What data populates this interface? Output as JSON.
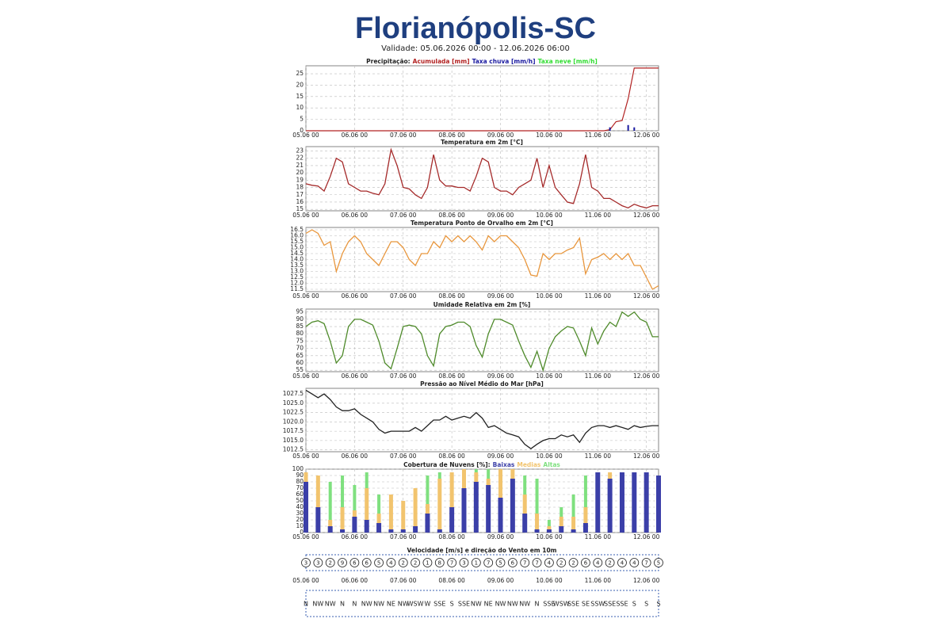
{
  "header": {
    "title": "Florianópolis-SC",
    "subtitle": "Validade: 05.06.2026 00:00 - 12.06.2026 06:00"
  },
  "chart_data": [
    {
      "type": "combo",
      "title": "Precipitação:",
      "xlim": [
        0,
        174
      ],
      "ylim": [
        0,
        28.5
      ],
      "yticks": [
        0,
        5,
        10,
        15,
        20,
        25
      ],
      "xticks": [
        {
          "value": 0,
          "label": "05.06 00"
        },
        {
          "value": 24,
          "label": "06.06 00"
        },
        {
          "value": 48,
          "label": "07.06 00"
        },
        {
          "value": 72,
          "label": "08.06 00"
        },
        {
          "value": 96,
          "label": "09.06 00"
        },
        {
          "value": 120,
          "label": "10.06 00"
        },
        {
          "value": 144,
          "label": "11.06 00"
        },
        {
          "value": 168,
          "label": "12.06 00"
        }
      ],
      "x": [
        0,
        147,
        150,
        153,
        156,
        159,
        162,
        165,
        168,
        171,
        174
      ],
      "series": [
        {
          "name": "Acumulada [mm]",
          "color": "#b22222",
          "kind": "line",
          "values": [
            0,
            0,
            0.5,
            4,
            4.5,
            14,
            27.5,
            27.5,
            27.5,
            27.5,
            27.5
          ]
        },
        {
          "name": "Taxa chuva [mm/h]",
          "color": "#1a1aa0",
          "kind": "bar",
          "values": [
            0,
            0,
            1.5,
            0,
            0,
            2.5,
            1.5,
            0,
            0,
            0,
            0
          ]
        },
        {
          "name": "Taxa neve [mm/h]",
          "color": "#33dd33",
          "kind": "bar",
          "values": [
            0,
            0,
            0,
            0,
            0,
            0,
            0,
            0,
            0,
            0,
            0
          ]
        }
      ]
    },
    {
      "type": "line",
      "title": "Temperatura em 2m [°C]",
      "color": "#a52a2a",
      "xlim": [
        0,
        174
      ],
      "ylim": [
        14.8,
        23.6
      ],
      "yticks": [
        15,
        16,
        17,
        18,
        19,
        20,
        21,
        22,
        23
      ],
      "xticks": [
        {
          "value": 0,
          "label": "05.06 00"
        },
        {
          "value": 24,
          "label": "06.06 00"
        },
        {
          "value": 48,
          "label": "07.06 00"
        },
        {
          "value": 72,
          "label": "08.06 00"
        },
        {
          "value": 96,
          "label": "09.06 00"
        },
        {
          "value": 120,
          "label": "10.06 00"
        },
        {
          "value": 144,
          "label": "11.06 00"
        },
        {
          "value": 168,
          "label": "12.06 00"
        }
      ],
      "x": [
        0,
        3,
        6,
        9,
        12,
        15,
        18,
        21,
        24,
        27,
        30,
        33,
        36,
        39,
        42,
        45,
        48,
        51,
        54,
        57,
        60,
        63,
        66,
        69,
        72,
        75,
        78,
        81,
        84,
        87,
        90,
        93,
        96,
        99,
        102,
        105,
        108,
        111,
        114,
        117,
        120,
        123,
        126,
        129,
        132,
        135,
        138,
        141,
        144,
        147,
        150,
        153,
        156,
        159,
        162,
        165,
        168,
        171,
        174
      ],
      "values": [
        18.5,
        18.3,
        18.2,
        17.5,
        19.5,
        22,
        21.5,
        18.5,
        18,
        17.5,
        17.5,
        17.2,
        17,
        18.5,
        23.2,
        21,
        18,
        17.8,
        17,
        16.5,
        18,
        22.5,
        19,
        18.2,
        18.2,
        18,
        18,
        17.5,
        19.5,
        22,
        21.5,
        18,
        17.5,
        17.5,
        17,
        18,
        18.5,
        19,
        22,
        18,
        21,
        18,
        17,
        16,
        15.8,
        18.5,
        22.5,
        18,
        17.5,
        16.5,
        16.5,
        16,
        15.5,
        15.2,
        15.7,
        15.4,
        15.2,
        15.5,
        15.5
      ]
    },
    {
      "type": "line",
      "title": "Temperatura Ponto de Orvalho em 2m [°C]",
      "color": "#e8963c",
      "xlim": [
        0,
        174
      ],
      "ylim": [
        11.3,
        16.7
      ],
      "yticks": [
        11.5,
        {
          "value": 12,
          "label": "12.0"
        },
        12.5,
        {
          "value": 13,
          "label": "13.0"
        },
        13.5,
        {
          "value": 14,
          "label": "14.0"
        },
        14.5,
        {
          "value": 15,
          "label": "15.0"
        },
        15.5,
        {
          "value": 16,
          "label": "16.0"
        },
        16.5
      ],
      "xticks": [
        {
          "value": 0,
          "label": "05.06 00"
        },
        {
          "value": 24,
          "label": "06.06 00"
        },
        {
          "value": 48,
          "label": "07.06 00"
        },
        {
          "value": 72,
          "label": "08.06 00"
        },
        {
          "value": 96,
          "label": "09.06 00"
        },
        {
          "value": 120,
          "label": "10.06 00"
        },
        {
          "value": 144,
          "label": "11.06 00"
        },
        {
          "value": 168,
          "label": "12.06 00"
        }
      ],
      "x": [
        0,
        3,
        6,
        9,
        12,
        15,
        18,
        21,
        24,
        27,
        30,
        33,
        36,
        39,
        42,
        45,
        48,
        51,
        54,
        57,
        60,
        63,
        66,
        69,
        72,
        75,
        78,
        81,
        84,
        87,
        90,
        93,
        96,
        99,
        102,
        105,
        108,
        111,
        114,
        117,
        120,
        123,
        126,
        129,
        132,
        135,
        138,
        141,
        144,
        147,
        150,
        153,
        156,
        159,
        162,
        165,
        168,
        171,
        174
      ],
      "values": [
        16.2,
        16.5,
        16.2,
        15.2,
        15.5,
        13,
        14.5,
        15.5,
        16,
        15.5,
        14.5,
        14,
        13.5,
        14.5,
        15.5,
        15.5,
        15,
        14,
        13.5,
        14.5,
        14.5,
        15.5,
        15,
        16,
        15.5,
        16,
        15.5,
        16,
        15.5,
        14.8,
        16,
        15.5,
        16,
        16,
        15.5,
        15,
        14,
        12.7,
        12.6,
        14.5,
        14,
        14.5,
        14.5,
        14.8,
        15,
        15.8,
        12.8,
        14,
        14.2,
        14.5,
        14,
        14.5,
        14,
        14.5,
        13.5,
        13.5,
        12.5,
        11.5,
        11.8
      ]
    },
    {
      "type": "line",
      "title": "Umidade Relativa em 2m [%]",
      "color": "#4e8a2a",
      "xlim": [
        0,
        174
      ],
      "ylim": [
        54,
        97
      ],
      "yticks": [
        55,
        60,
        65,
        70,
        75,
        80,
        85,
        90,
        95
      ],
      "xticks": [
        {
          "value": 0,
          "label": "05.06 00"
        },
        {
          "value": 24,
          "label": "06.06 00"
        },
        {
          "value": 48,
          "label": "07.06 00"
        },
        {
          "value": 72,
          "label": "08.06 00"
        },
        {
          "value": 96,
          "label": "09.06 00"
        },
        {
          "value": 120,
          "label": "10.06 00"
        },
        {
          "value": 144,
          "label": "11.06 00"
        },
        {
          "value": 168,
          "label": "12.06 00"
        }
      ],
      "x": [
        0,
        3,
        6,
        9,
        12,
        15,
        18,
        21,
        24,
        27,
        30,
        33,
        36,
        39,
        42,
        45,
        48,
        51,
        54,
        57,
        60,
        63,
        66,
        69,
        72,
        75,
        78,
        81,
        84,
        87,
        90,
        93,
        96,
        99,
        102,
        105,
        108,
        111,
        114,
        117,
        120,
        123,
        126,
        129,
        132,
        135,
        138,
        141,
        144,
        147,
        150,
        153,
        156,
        159,
        162,
        165,
        168,
        171,
        174
      ],
      "values": [
        85,
        88,
        89,
        87,
        75,
        60,
        65,
        85,
        90,
        90,
        88,
        86,
        75,
        60,
        56,
        70,
        85,
        86,
        85,
        80,
        65,
        58,
        80,
        85,
        86,
        88,
        88,
        85,
        72,
        64,
        80,
        90,
        90,
        88,
        86,
        75,
        65,
        57,
        68,
        55,
        70,
        78,
        82,
        85,
        84,
        75,
        65,
        84,
        73,
        82,
        88,
        85,
        95,
        92,
        95,
        90,
        88,
        78,
        78
      ]
    },
    {
      "type": "line",
      "title": "Pressão ao Nível Médio do Mar [hPa]",
      "color": "#222222",
      "xlim": [
        0,
        174
      ],
      "ylim": [
        1012,
        1029
      ],
      "yticks": [
        1012.5,
        {
          "value": 1015,
          "label": "1015.0"
        },
        1017.5,
        {
          "value": 1020,
          "label": "1020.0"
        },
        1022.5,
        {
          "value": 1025,
          "label": "1025.0"
        },
        1027.5
      ],
      "xticks": [
        {
          "value": 0,
          "label": "05.06 00"
        },
        {
          "value": 24,
          "label": "06.06 00"
        },
        {
          "value": 48,
          "label": "07.06 00"
        },
        {
          "value": 72,
          "label": "08.06 00"
        },
        {
          "value": 96,
          "label": "09.06 00"
        },
        {
          "value": 120,
          "label": "10.06 00"
        },
        {
          "value": 144,
          "label": "11.06 00"
        },
        {
          "value": 168,
          "label": "12.06 00"
        }
      ],
      "x": [
        0,
        3,
        6,
        9,
        12,
        15,
        18,
        21,
        24,
        27,
        30,
        33,
        36,
        39,
        42,
        45,
        48,
        51,
        54,
        57,
        60,
        63,
        66,
        69,
        72,
        75,
        78,
        81,
        84,
        87,
        90,
        93,
        96,
        99,
        102,
        105,
        108,
        111,
        114,
        117,
        120,
        123,
        126,
        129,
        132,
        135,
        138,
        141,
        144,
        147,
        150,
        153,
        156,
        159,
        162,
        165,
        168,
        171,
        174
      ],
      "values": [
        1028.5,
        1027.5,
        1026.5,
        1027.5,
        1026,
        1024,
        1023,
        1023,
        1023.5,
        1022,
        1021,
        1020,
        1018,
        1017,
        1017.5,
        1017.5,
        1017.5,
        1017.5,
        1018.5,
        1017.5,
        1019,
        1020.5,
        1020.5,
        1021.5,
        1020.5,
        1021,
        1021.5,
        1021,
        1022.5,
        1021,
        1018.5,
        1019,
        1018,
        1017,
        1016.5,
        1016,
        1014,
        1012.8,
        1014,
        1015,
        1015.5,
        1015.5,
        1016.5,
        1016,
        1016.5,
        1014.5,
        1017,
        1018.5,
        1019,
        1019,
        1018.5,
        1019,
        1018.5,
        1018,
        1019,
        1018.5,
        1018.8,
        1019,
        1019
      ]
    },
    {
      "type": "bars",
      "title": "Cobertura de Nuvens [%]:",
      "xlim": [
        0,
        174
      ],
      "ylim": [
        0,
        100
      ],
      "yticks": [
        0,
        10,
        20,
        30,
        40,
        50,
        60,
        70,
        80,
        90,
        100
      ],
      "xticks": [
        {
          "value": 0,
          "label": "05.06 00"
        },
        {
          "value": 24,
          "label": "06.06 00"
        },
        {
          "value": 48,
          "label": "07.06 00"
        },
        {
          "value": 72,
          "label": "08.06 00"
        },
        {
          "value": 96,
          "label": "09.06 00"
        },
        {
          "value": 120,
          "label": "10.06 00"
        },
        {
          "value": 144,
          "label": "11.06 00"
        },
        {
          "value": 168,
          "label": "12.06 00"
        }
      ],
      "x": [
        0,
        6,
        12,
        18,
        24,
        30,
        36,
        42,
        48,
        54,
        60,
        66,
        72,
        78,
        84,
        90,
        96,
        102,
        108,
        114,
        120,
        126,
        132,
        138,
        144,
        150,
        156,
        162,
        168,
        174
      ],
      "series": [
        {
          "name": "Baixas",
          "color": "#3b3fa8",
          "values": [
            80,
            40,
            10,
            5,
            25,
            20,
            15,
            5,
            5,
            10,
            30,
            5,
            40,
            70,
            80,
            75,
            55,
            85,
            30,
            5,
            5,
            10,
            5,
            15,
            95,
            85,
            95,
            95,
            95,
            90
          ]
        },
        {
          "name": "Medias",
          "color": "#f2c46e",
          "values": [
            95,
            90,
            20,
            40,
            35,
            70,
            30,
            60,
            50,
            70,
            45,
            85,
            95,
            100,
            95,
            85,
            100,
            100,
            60,
            30,
            10,
            25,
            25,
            40,
            75,
            95,
            85,
            90,
            80,
            60
          ]
        },
        {
          "name": "Altas",
          "color": "#7fe07f",
          "values": [
            90,
            60,
            80,
            90,
            75,
            95,
            60,
            20,
            10,
            50,
            90,
            95,
            95,
            95,
            100,
            100,
            90,
            90,
            90,
            85,
            20,
            40,
            60,
            90,
            95,
            95,
            95,
            95,
            95,
            90
          ]
        }
      ]
    },
    {
      "type": "wind",
      "title": "Velocidade [m/s] e direção do Vento em 10m",
      "xlim": [
        0,
        174
      ],
      "xticks": [
        {
          "value": 0,
          "label": "05.06 00"
        },
        {
          "value": 24,
          "label": "06.06 00"
        },
        {
          "value": 48,
          "label": "07.06 00"
        },
        {
          "value": 72,
          "label": "08.06 00"
        },
        {
          "value": 96,
          "label": "09.06 00"
        },
        {
          "value": 120,
          "label": "10.06 00"
        },
        {
          "value": 144,
          "label": "11.06 00"
        },
        {
          "value": 168,
          "label": "12.06 00"
        }
      ],
      "x": [
        0,
        6,
        12,
        18,
        24,
        30,
        36,
        42,
        48,
        54,
        60,
        66,
        72,
        78,
        84,
        90,
        96,
        102,
        108,
        114,
        120,
        126,
        132,
        138,
        144,
        150,
        156,
        162,
        168,
        174
      ],
      "values": [
        3,
        3,
        2,
        9,
        6,
        6,
        5,
        4,
        2,
        2,
        1,
        8,
        7,
        3,
        1,
        7,
        5,
        6,
        7,
        7,
        4,
        2,
        2,
        6,
        4,
        2,
        4,
        4,
        7,
        5
      ],
      "directions": [
        "N",
        "NW",
        "NW",
        "N",
        "N",
        "NW",
        "NW",
        "NE",
        "NW",
        "WSW",
        "W",
        "SSE",
        "S",
        "SSE",
        "NW",
        "NE",
        "NW",
        "NW",
        "NW",
        "N",
        "SSE",
        "WSW",
        "SSE",
        "SE",
        "SSW",
        "SSE",
        "SSE",
        "S",
        "S",
        "S"
      ]
    }
  ]
}
